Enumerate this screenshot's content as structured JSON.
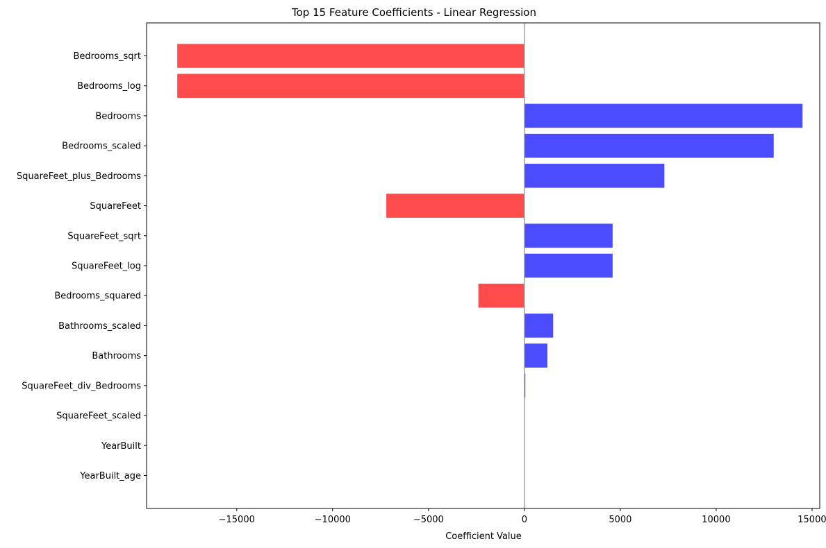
{
  "chart_data": {
    "type": "bar",
    "orientation": "horizontal",
    "title": "Top 15 Feature Coefficients - Linear Regression",
    "xlabel": "Coefficient Value",
    "ylabel": "",
    "categories": [
      "Bedrooms_sqrt",
      "Bedrooms_log",
      "Bedrooms",
      "Bedrooms_scaled",
      "SquareFeet_plus_Bedrooms",
      "SquareFeet",
      "SquareFeet_sqrt",
      "SquareFeet_log",
      "Bedrooms_squared",
      "Bathrooms_scaled",
      "Bathrooms",
      "SquareFeet_div_Bedrooms",
      "SquareFeet_scaled",
      "YearBuilt",
      "YearBuilt_age"
    ],
    "values": [
      -18100,
      -18100,
      14500,
      13000,
      7300,
      -7200,
      4600,
      4600,
      -2400,
      1500,
      1200,
      50,
      0,
      0,
      0
    ],
    "xlim": [
      -19700,
      15400
    ],
    "xticks": [
      -15000,
      -10000,
      -5000,
      0,
      5000,
      10000,
      15000
    ],
    "xtick_labels": [
      "−15000",
      "−10000",
      "−5000",
      "0",
      "5000",
      "10000",
      "15000"
    ],
    "colors": {
      "positive": "#4b4bff",
      "negative": "#ff4b4b",
      "zero_line": "#a0a0a0",
      "axis": "#000000"
    },
    "grid": false,
    "legend": "none"
  }
}
